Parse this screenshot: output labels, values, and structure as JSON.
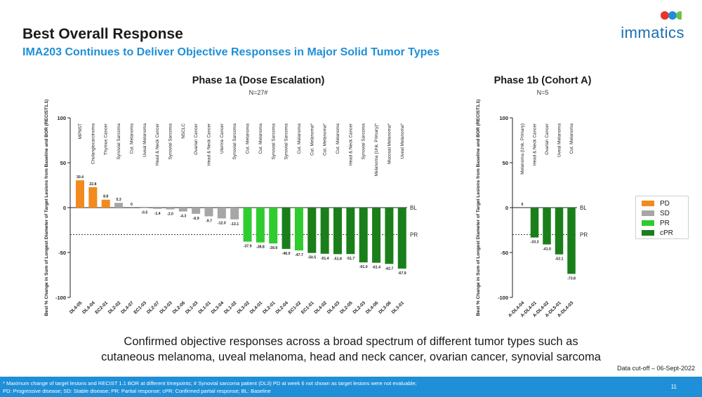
{
  "header": {
    "title": "Best Overall Response",
    "subtitle": "IMA203 Continues to Deliver Objective Responses in Major Solid Tumor Types"
  },
  "logo": {
    "text": "immatics",
    "dot_colors": [
      "#e8352b",
      "#1f8fd8",
      "#6cc24a"
    ]
  },
  "colors": {
    "PD": "#f28a1e",
    "SD": "#a6a6a6",
    "PR": "#2ecc2e",
    "cPR": "#1a7f1a",
    "accent": "#1f8fd8"
  },
  "legend": [
    {
      "label": "PD",
      "key": "PD"
    },
    {
      "label": "SD",
      "key": "SD"
    },
    {
      "label": "PR",
      "key": "PR"
    },
    {
      "label": "cPR",
      "key": "cPR"
    }
  ],
  "chart_data": [
    {
      "type": "bar",
      "title": "Phase 1a (Dose Escalation)",
      "subtitle": "N=27#",
      "ylabel": "Best % Change in Sum of Longest Diameter of Target Lesions from Baseline and BOR (RECIST1.1)",
      "ylim": [
        -100,
        100
      ],
      "yticks": [
        100,
        50,
        0,
        -50,
        -100
      ],
      "ytick_labels": [
        "100",
        "50",
        "0",
        "-50",
        "-100"
      ],
      "reference_lines": [
        {
          "value": 0,
          "label": "BL"
        },
        {
          "value": -30,
          "label": "PR"
        }
      ],
      "categories": [
        "DL4-05",
        "DL4-04",
        "EC2-01",
        "DL2-02",
        "DL4-07",
        "EC1-03",
        "DL2-07",
        "DL3-03",
        "DL2-06",
        "DL1-03",
        "DL1-01",
        "DL3-04",
        "DL1-02",
        "DL3-02",
        "DL4-01",
        "DL2-01",
        "DL2-04",
        "EC1-02",
        "EC1-01",
        "DL4-02",
        "DL4-03",
        "DL2-05",
        "DL2-03",
        "DL4-06",
        "DL3-06",
        "DL3-01"
      ],
      "tumor_types": [
        "MPNST",
        "Cholangiocarcinoma",
        "Thymus Cancer",
        "Synovial Sarcoma",
        "Cut. Melanoma",
        "Uveal Melanoma",
        "Head & Neck Cancer",
        "Synovial Sarcoma",
        "NSCLC",
        "Ovarian Cancer",
        "Head & Neck Cancer",
        "Uterine Cancer",
        "Synovial Sarcoma",
        "Cut. Melanoma",
        "Cut. Melanoma",
        "Synovial Sarcoma",
        "Synovial Sarcoma",
        "Cut. Melanoma",
        "Cut. Melanoma*",
        "Cut. Melanoma*",
        "Cut. Melanoma",
        "Head & Neck Cancer",
        "Synovial Sarcoma",
        "Melanoma (Unk. Primary)*",
        "Mucosal Melanoma*",
        "Uveal Melanoma*"
      ],
      "values": [
        30.4,
        22.8,
        8.8,
        5.3,
        0,
        -0.5,
        -1.4,
        -2.0,
        -4.3,
        -6.9,
        -9.7,
        -12.0,
        -13.1,
        -37.9,
        -38.8,
        -39.9,
        -46.0,
        -47.7,
        -50.5,
        -51.4,
        -51.8,
        -51.7,
        -61.0,
        -61.4,
        -62.7,
        -67.9
      ],
      "data_labels": [
        "30.4",
        "22.8",
        "8.8",
        "5.3",
        "0",
        "-0.5",
        "-1.4",
        "-2.0",
        "-4.3",
        "-6.9",
        "-9.7",
        "-12.0",
        "-13.1",
        "-37.9",
        "-38.8",
        "-39.9",
        "-46.0",
        "-47.7",
        "-50.5",
        "-51.4",
        "-51.8",
        "-51.7",
        "-61.0",
        "-61.4",
        "-62.7",
        "-67.9"
      ],
      "response": [
        "PD",
        "PD",
        "PD",
        "SD",
        "SD",
        "SD",
        "SD",
        "SD",
        "SD",
        "SD",
        "SD",
        "SD",
        "SD",
        "PR",
        "PR",
        "PR",
        "cPR",
        "PR",
        "cPR",
        "cPR",
        "cPR",
        "cPR",
        "cPR",
        "cPR",
        "cPR",
        "cPR"
      ]
    },
    {
      "type": "bar",
      "title": "Phase 1b (Cohort A)",
      "subtitle": "N=5",
      "ylabel": "Best % Change in Sum of Longest Diameter of Target Lesions from Baseline and BOR (RECIST1.1)",
      "ylim": [
        -100,
        100
      ],
      "yticks": [
        100,
        50,
        0,
        -50,
        -100
      ],
      "ytick_labels": [
        "100",
        "50",
        "0",
        "-50",
        "-100"
      ],
      "reference_lines": [
        {
          "value": 0,
          "label": "BL"
        },
        {
          "value": -30,
          "label": "PR"
        }
      ],
      "categories": [
        "A-DL4-04",
        "A-DL4-01",
        "A-DL4-02",
        "A-DL5-01",
        "A-DL4-03"
      ],
      "tumor_types": [
        "Melanoma (Unk. Primary)",
        "Head & Neck Cancer",
        "Ovarian Cancer",
        "Uveal Melanoma",
        "Cut. Melanoma"
      ],
      "values": [
        0,
        -33.3,
        -41.0,
        -52.1,
        -73.8
      ],
      "data_labels": [
        "0",
        "-33.3",
        "-41.0",
        "-52.1",
        "-73.8"
      ],
      "response": [
        "SD",
        "cPR",
        "cPR",
        "cPR",
        "cPR"
      ]
    }
  ],
  "bottom_text": {
    "line1": "Confirmed objective responses across a broad spectrum of different tumor types such as",
    "line2": "cutaneous melanoma, uveal melanoma, head and neck cancer, ovarian cancer, synovial sarcoma"
  },
  "data_cutoff": "Data cut-off – 06-Sept-2022",
  "footer": {
    "line1": "* Maximum change of target lesions and RECIST 1.1 BOR at different timepoints; # Synovial sarcoma patient (DL3) PD at week 6 not shown as target lesions were not evaluable;",
    "line2": "PD: Progressive disease; SD: Stable disease; PR: Partial response; cPR: Confirmed partial response; BL: Baseline",
    "page_number": "11"
  }
}
